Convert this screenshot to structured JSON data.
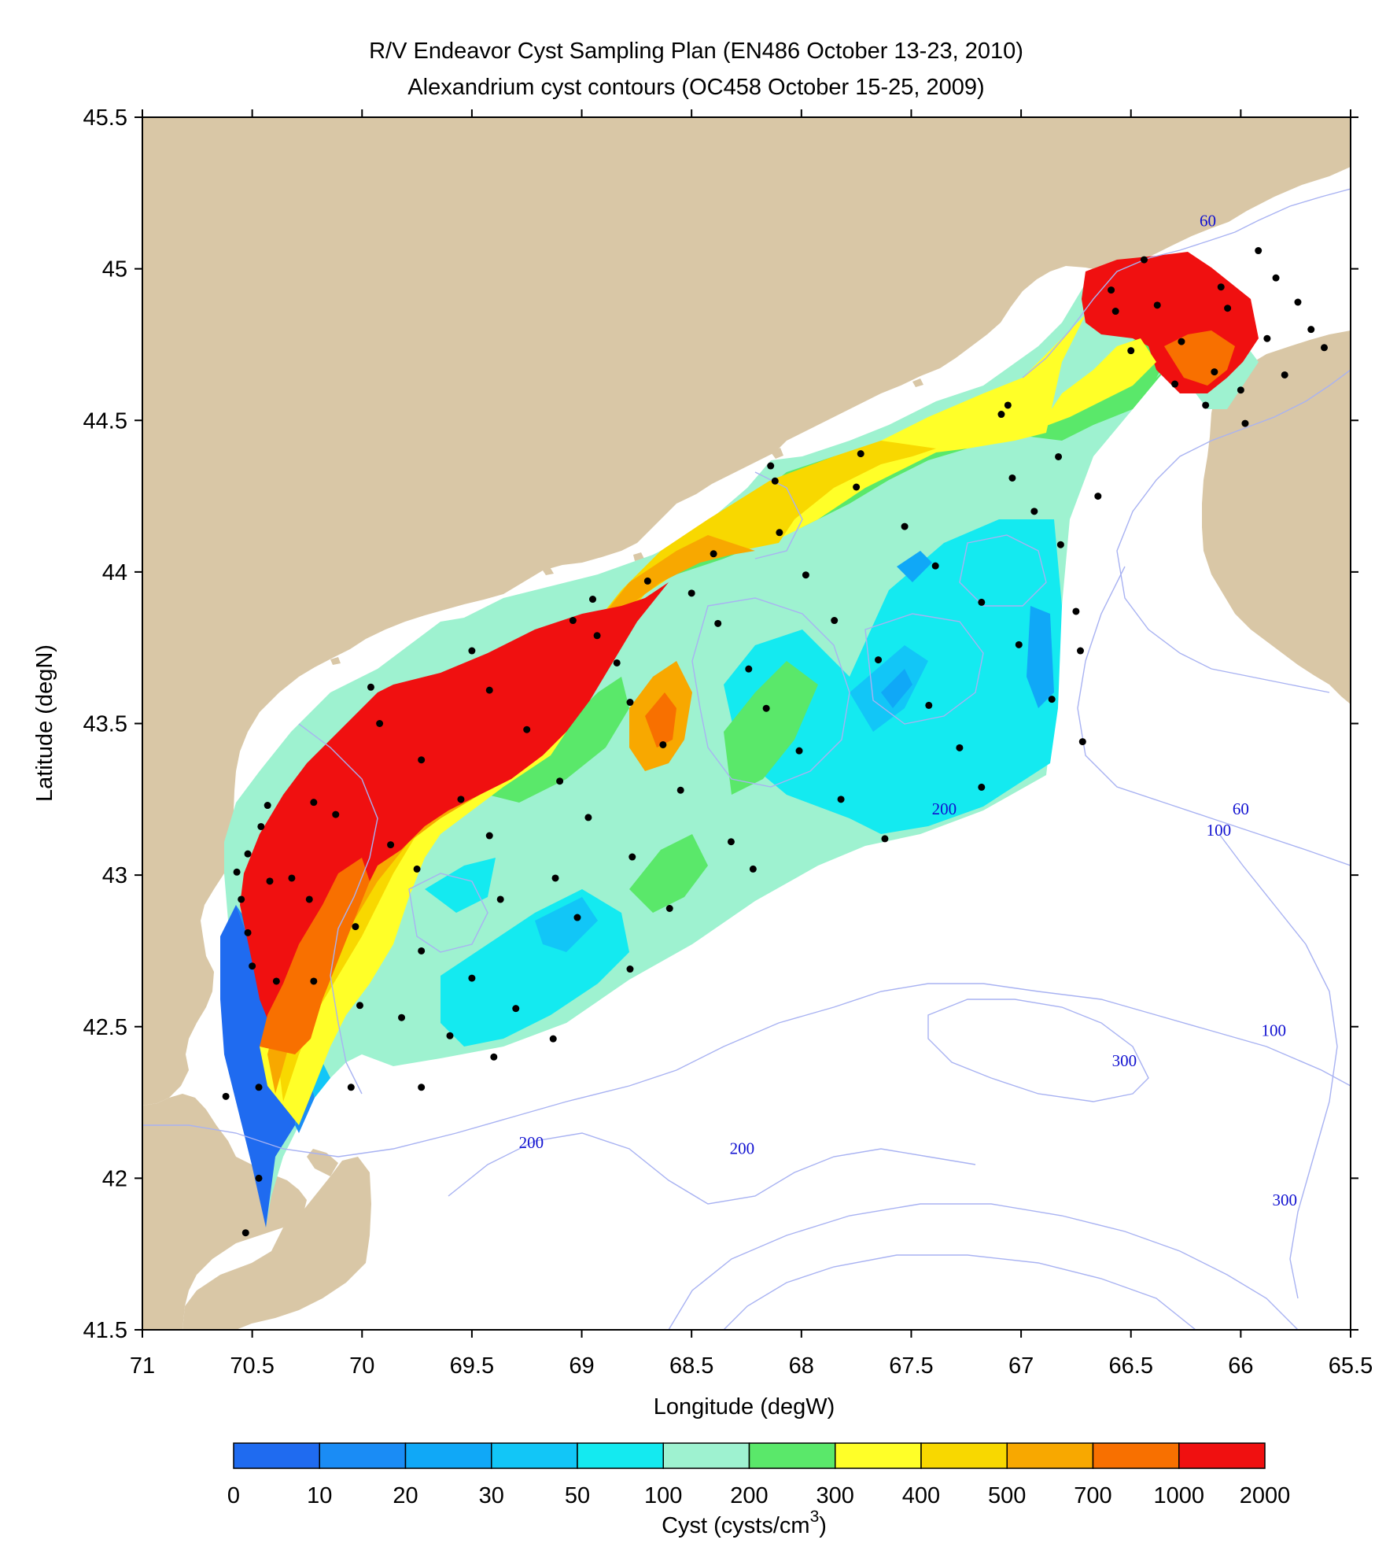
{
  "title_line1": "R/V Endeavor Cyst Sampling Plan (EN486 October 13-23, 2010)",
  "title_line2": "Alexandrium cyst contours (OC458 October 15-25, 2009)",
  "x_axis": {
    "label": "Longitude (degW)",
    "range": [
      71,
      65.5
    ],
    "ticks": [
      71,
      70.5,
      70,
      69.5,
      69,
      68.5,
      68,
      67.5,
      67,
      66.5,
      66,
      65.5
    ],
    "tick_labels": [
      "71",
      "70.5",
      "70",
      "69.5",
      "69",
      "68.5",
      "68",
      "67.5",
      "67",
      "66.5",
      "66",
      "65.5"
    ]
  },
  "y_axis": {
    "label": "Latitude (degN)",
    "range": [
      41.5,
      45.5
    ],
    "ticks": [
      41.5,
      42,
      42.5,
      43,
      43.5,
      44,
      44.5,
      45,
      45.5
    ],
    "tick_labels": [
      "41.5",
      "42",
      "42.5",
      "43",
      "43.5",
      "44",
      "44.5",
      "45",
      "45.5"
    ]
  },
  "isobath_labels": [
    {
      "text": "60",
      "lon": 66.15,
      "lat": 45.14
    },
    {
      "text": "60",
      "lon": 66.0,
      "lat": 43.2
    },
    {
      "text": "100",
      "lon": 66.1,
      "lat": 43.13
    },
    {
      "text": "100",
      "lon": 65.85,
      "lat": 42.47
    },
    {
      "text": "200",
      "lon": 67.35,
      "lat": 43.2
    },
    {
      "text": "200",
      "lon": 69.23,
      "lat": 42.1
    },
    {
      "text": "200",
      "lon": 68.27,
      "lat": 42.08
    },
    {
      "text": "300",
      "lon": 66.53,
      "lat": 42.37
    },
    {
      "text": "300",
      "lon": 65.8,
      "lat": 41.91
    }
  ],
  "colorbar": {
    "label_prefix": "Cyst (cysts/cm",
    "label_sup": "3",
    "label_suffix": ")",
    "levels": [
      "0",
      "10",
      "20",
      "30",
      "50",
      "100",
      "200",
      "300",
      "400",
      "500",
      "700",
      "1000",
      "2000"
    ],
    "colors": [
      "#1f6bf0",
      "#1a8cf5",
      "#10a8f7",
      "#12c6f7",
      "#14eaf0",
      "#9ef2d0",
      "#5ae86a",
      "#ffff28",
      "#f8d800",
      "#f8a800",
      "#f87000",
      "#f01010"
    ]
  },
  "colors": {
    "land": "#d9c7a6",
    "isobath": "#a8b2f2",
    "station": "#000000"
  },
  "stations": [
    [
      70.53,
      41.82
    ],
    [
      70.62,
      42.27
    ],
    [
      70.47,
      42.0
    ],
    [
      70.47,
      42.3
    ],
    [
      70.5,
      42.7
    ],
    [
      70.52,
      42.81
    ],
    [
      70.55,
      42.92
    ],
    [
      70.57,
      43.01
    ],
    [
      70.52,
      43.07
    ],
    [
      70.46,
      43.16
    ],
    [
      70.43,
      43.23
    ],
    [
      70.42,
      42.98
    ],
    [
      70.32,
      42.99
    ],
    [
      70.39,
      42.65
    ],
    [
      70.24,
      42.92
    ],
    [
      70.22,
      43.24
    ],
    [
      70.22,
      42.65
    ],
    [
      70.12,
      43.2
    ],
    [
      70.05,
      42.3
    ],
    [
      70.03,
      42.83
    ],
    [
      70.01,
      42.57
    ],
    [
      69.96,
      43.62
    ],
    [
      69.92,
      43.5
    ],
    [
      69.87,
      43.1
    ],
    [
      69.82,
      42.53
    ],
    [
      69.73,
      43.38
    ],
    [
      69.75,
      43.02
    ],
    [
      69.73,
      42.3
    ],
    [
      69.73,
      42.75
    ],
    [
      69.6,
      42.47
    ],
    [
      69.55,
      43.25
    ],
    [
      69.5,
      43.74
    ],
    [
      69.5,
      42.66
    ],
    [
      69.42,
      43.61
    ],
    [
      69.42,
      43.13
    ],
    [
      69.4,
      42.4
    ],
    [
      69.37,
      42.92
    ],
    [
      69.3,
      42.56
    ],
    [
      69.25,
      43.48
    ],
    [
      69.12,
      42.99
    ],
    [
      69.1,
      43.31
    ],
    [
      69.13,
      42.46
    ],
    [
      69.04,
      43.84
    ],
    [
      69.02,
      42.86
    ],
    [
      68.97,
      43.19
    ],
    [
      68.95,
      43.91
    ],
    [
      68.93,
      43.79
    ],
    [
      68.84,
      43.7
    ],
    [
      68.78,
      43.57
    ],
    [
      68.77,
      43.06
    ],
    [
      68.78,
      42.69
    ],
    [
      68.7,
      43.97
    ],
    [
      68.63,
      43.43
    ],
    [
      68.6,
      42.89
    ],
    [
      68.55,
      43.28
    ],
    [
      68.5,
      43.93
    ],
    [
      68.4,
      44.06
    ],
    [
      68.38,
      43.83
    ],
    [
      68.32,
      43.11
    ],
    [
      68.24,
      43.68
    ],
    [
      68.22,
      43.02
    ],
    [
      68.16,
      43.55
    ],
    [
      68.14,
      44.35
    ],
    [
      68.12,
      44.3
    ],
    [
      68.1,
      44.13
    ],
    [
      68.01,
      43.41
    ],
    [
      67.98,
      43.99
    ],
    [
      67.85,
      43.84
    ],
    [
      67.82,
      43.25
    ],
    [
      67.75,
      44.28
    ],
    [
      67.73,
      44.39
    ],
    [
      67.65,
      43.71
    ],
    [
      67.62,
      43.12
    ],
    [
      67.53,
      44.15
    ],
    [
      67.42,
      43.56
    ],
    [
      67.39,
      44.02
    ],
    [
      67.28,
      43.42
    ],
    [
      67.18,
      43.9
    ],
    [
      67.18,
      43.29
    ],
    [
      67.09,
      44.52
    ],
    [
      67.06,
      44.55
    ],
    [
      67.04,
      44.31
    ],
    [
      67.01,
      43.76
    ],
    [
      66.94,
      44.2
    ],
    [
      66.86,
      43.58
    ],
    [
      66.83,
      44.38
    ],
    [
      66.82,
      44.09
    ],
    [
      66.75,
      43.87
    ],
    [
      66.73,
      43.74
    ],
    [
      66.72,
      43.44
    ],
    [
      66.65,
      44.25
    ],
    [
      66.59,
      44.93
    ],
    [
      66.57,
      44.86
    ],
    [
      66.5,
      44.73
    ],
    [
      66.44,
      45.03
    ],
    [
      66.38,
      44.88
    ],
    [
      66.3,
      44.62
    ],
    [
      66.27,
      44.76
    ],
    [
      66.16,
      44.55
    ],
    [
      66.12,
      44.66
    ],
    [
      66.09,
      44.94
    ],
    [
      66.06,
      44.87
    ],
    [
      66.0,
      44.6
    ],
    [
      65.98,
      44.49
    ],
    [
      65.92,
      45.06
    ],
    [
      65.88,
      44.77
    ],
    [
      65.84,
      44.97
    ],
    [
      65.8,
      44.65
    ],
    [
      65.74,
      44.89
    ],
    [
      65.68,
      44.8
    ],
    [
      65.62,
      44.74
    ]
  ]
}
